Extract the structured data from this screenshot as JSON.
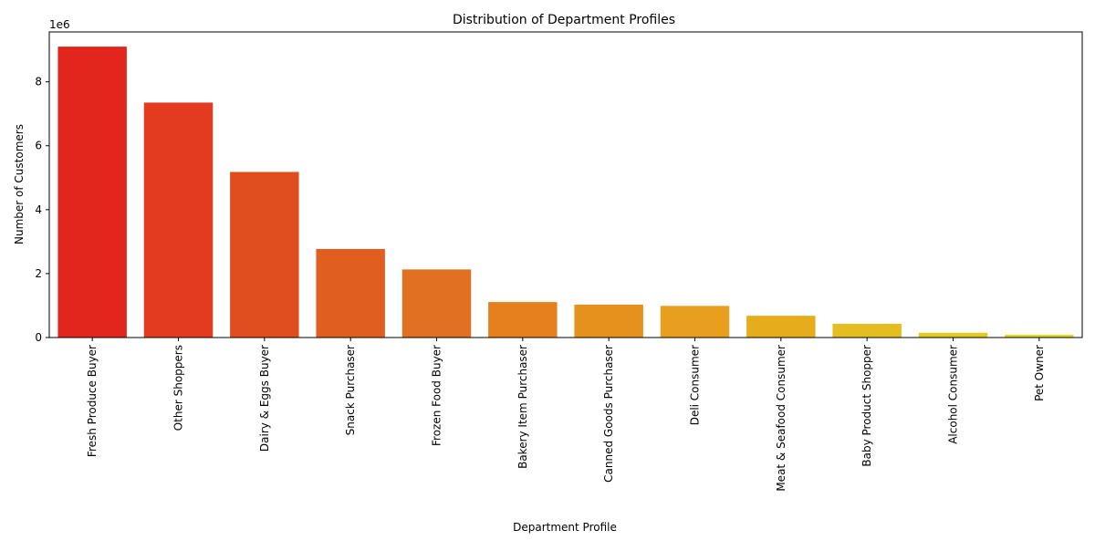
{
  "chart_data": {
    "type": "bar",
    "title": "Distribution of Department Profiles",
    "xlabel": "Department Profile",
    "ylabel": "Number of Customers",
    "y_offset_label": "1e6",
    "ylim": [
      0,
      9.56
    ],
    "yticks": [
      0,
      2,
      4,
      6,
      8
    ],
    "grid": false,
    "categories": [
      "Fresh Produce Buyer",
      "Other Shoppers",
      "Dairy & Eggs Buyer",
      "Snack Purchaser",
      "Frozen Food Buyer",
      "Bakery Item Purchaser",
      "Canned Goods Purchaser",
      "Deli Consumer",
      "Meat & Seafood Consumer",
      "Baby Product Shopper",
      "Alcohol Consumer",
      "Pet Owner"
    ],
    "values": [
      9.1,
      7.35,
      5.18,
      2.77,
      2.13,
      1.11,
      1.03,
      0.99,
      0.68,
      0.43,
      0.15,
      0.09
    ],
    "colors": [
      "#e2261e",
      "#e33b1f",
      "#e04e1f",
      "#e05e20",
      "#e17020",
      "#e5811c",
      "#e6901e",
      "#e79f1d",
      "#e5ad1c",
      "#e4bd1f",
      "#e4cb22",
      "#e3d924"
    ]
  }
}
